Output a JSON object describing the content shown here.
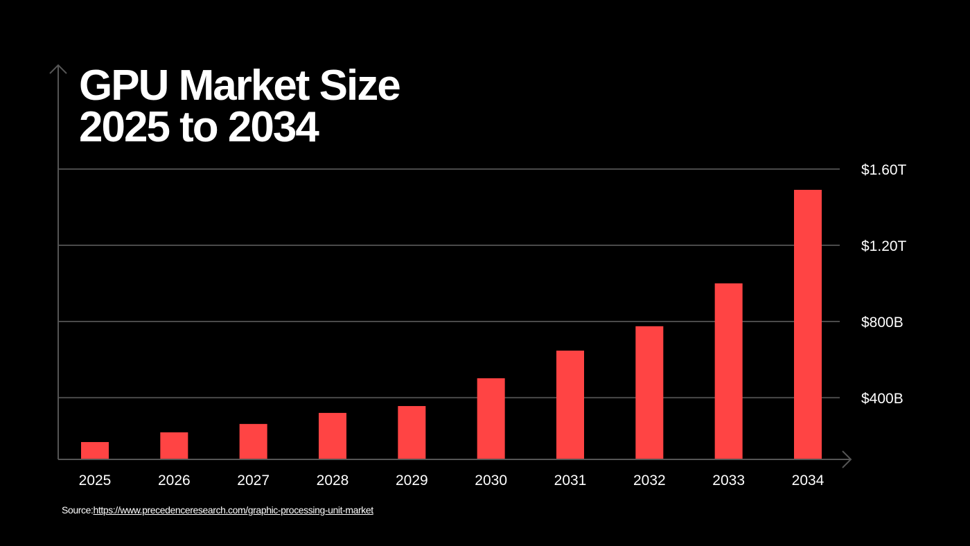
{
  "chart_data": {
    "type": "bar",
    "title_lines": [
      "GPU Market Size",
      "2025 to 2034"
    ],
    "xlabel": "",
    "ylabel": "",
    "categories": [
      "2025",
      "2026",
      "2027",
      "2028",
      "2029",
      "2030",
      "2031",
      "2032",
      "2033",
      "2034"
    ],
    "values": [
      167,
      218,
      262,
      320,
      356,
      502,
      647,
      775,
      1000,
      1491
    ],
    "value_unit": "USD billions",
    "y_ticks": [
      {
        "value": 400,
        "label": "$400B"
      },
      {
        "value": 800,
        "label": "$800B"
      },
      {
        "value": 1200,
        "label": "$1.20T"
      },
      {
        "value": 1600,
        "label": "$1.60T"
      }
    ],
    "ylim": [
      76,
      1600
    ],
    "grid": true,
    "y_axis_side": "right",
    "legend": "none",
    "bar_color": "#ff4444",
    "grid_color": "#4a4a4a",
    "axis_color": "#555555",
    "background": "#000000"
  },
  "source": {
    "prefix": "Source:",
    "link_text": "https://www.precedenceresearch.com/graphic-processing-unit-market"
  }
}
